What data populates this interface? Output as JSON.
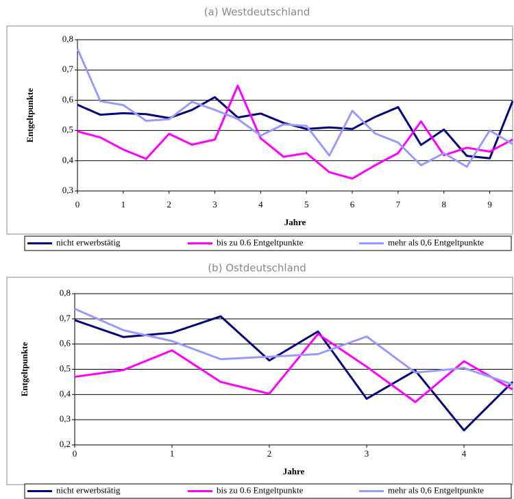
{
  "chart_data": [
    {
      "type": "line",
      "title": "(a) Westdeutschland",
      "x_label": "Jahre",
      "y_label": "Entgeltpunkte",
      "x": [
        0,
        0.5,
        1,
        1.5,
        2,
        2.5,
        3,
        3.5,
        4,
        4.5,
        5,
        5.5,
        6,
        6.5,
        7,
        7.5,
        8,
        8.5,
        9,
        9.5
      ],
      "series": [
        {
          "name": "nicht erwerbstätig",
          "color": "#000080",
          "values": [
            0.585,
            0.552,
            0.557,
            0.554,
            0.541,
            0.568,
            0.61,
            0.543,
            0.556,
            0.525,
            0.505,
            0.51,
            0.505,
            0.545,
            0.577,
            0.452,
            0.503,
            0.416,
            0.408,
            0.597
          ]
        },
        {
          "name": "bis zu 0.6 Entgeltpunkte",
          "color": "#ff00ff",
          "values": [
            0.497,
            0.477,
            0.437,
            0.406,
            0.489,
            0.453,
            0.47,
            0.648,
            0.474,
            0.413,
            0.425,
            0.362,
            0.341,
            0.385,
            0.425,
            0.53,
            0.418,
            0.443,
            0.43,
            0.47
          ]
        },
        {
          "name": "mehr als 0,6 Entgeltpunkte",
          "color": "#9999ff",
          "values": [
            0.77,
            0.597,
            0.584,
            0.532,
            0.537,
            0.595,
            0.568,
            0.538,
            0.483,
            0.52,
            0.515,
            0.417,
            0.565,
            0.49,
            0.46,
            0.385,
            0.425,
            0.38,
            0.5,
            0.455
          ]
        }
      ],
      "xlim": [
        0,
        9.5
      ],
      "xticks": [
        0,
        1,
        2,
        3,
        4,
        5,
        6,
        7,
        8,
        9
      ],
      "ylim": [
        0.3,
        0.8
      ],
      "yticks": [
        {
          "value": 0.3,
          "label": "0,3"
        },
        {
          "value": 0.4,
          "label": "0,4"
        },
        {
          "value": 0.5,
          "label": "0,5"
        },
        {
          "value": 0.6,
          "label": "0,6"
        },
        {
          "value": 0.7,
          "label": "0,7"
        },
        {
          "value": 0.8,
          "label": "0,8"
        }
      ],
      "grid": true,
      "legend": "bottom"
    },
    {
      "type": "line",
      "title": "(b) Ostdeutschland",
      "x_label": "Jahre",
      "y_label": "Entgeltpunkte",
      "x": [
        0,
        0.5,
        1,
        1.5,
        2,
        2.5,
        3,
        3.5,
        4,
        4.5
      ],
      "series": [
        {
          "name": "nicht erwerbstätig",
          "color": "#000080",
          "values": [
            0.695,
            0.628,
            0.645,
            0.71,
            0.535,
            0.65,
            0.383,
            0.495,
            0.258,
            0.45
          ]
        },
        {
          "name": "bis zu 0.6 Entgeltpunkte",
          "color": "#ff00ff",
          "values": [
            0.47,
            0.497,
            0.575,
            0.45,
            0.403,
            0.64,
            0.51,
            0.37,
            0.532,
            0.42
          ]
        },
        {
          "name": "mehr als 0,6 Entgeltpunkte",
          "color": "#9999ff",
          "values": [
            0.74,
            0.655,
            0.612,
            0.54,
            0.55,
            0.56,
            0.63,
            0.487,
            0.505,
            0.44
          ]
        }
      ],
      "xlim": [
        0,
        4.5
      ],
      "xticks": [
        0,
        1,
        2,
        3,
        4
      ],
      "ylim": [
        0.2,
        0.8
      ],
      "yticks": [
        {
          "value": 0.2,
          "label": "0,2"
        },
        {
          "value": 0.3,
          "label": "0,3"
        },
        {
          "value": 0.4,
          "label": "0,4"
        },
        {
          "value": 0.5,
          "label": "0,5"
        },
        {
          "value": 0.6,
          "label": "0,6"
        },
        {
          "value": 0.7,
          "label": "0,7"
        },
        {
          "value": 0.8,
          "label": "0,8"
        }
      ],
      "grid": true,
      "legend": "bottom"
    }
  ]
}
